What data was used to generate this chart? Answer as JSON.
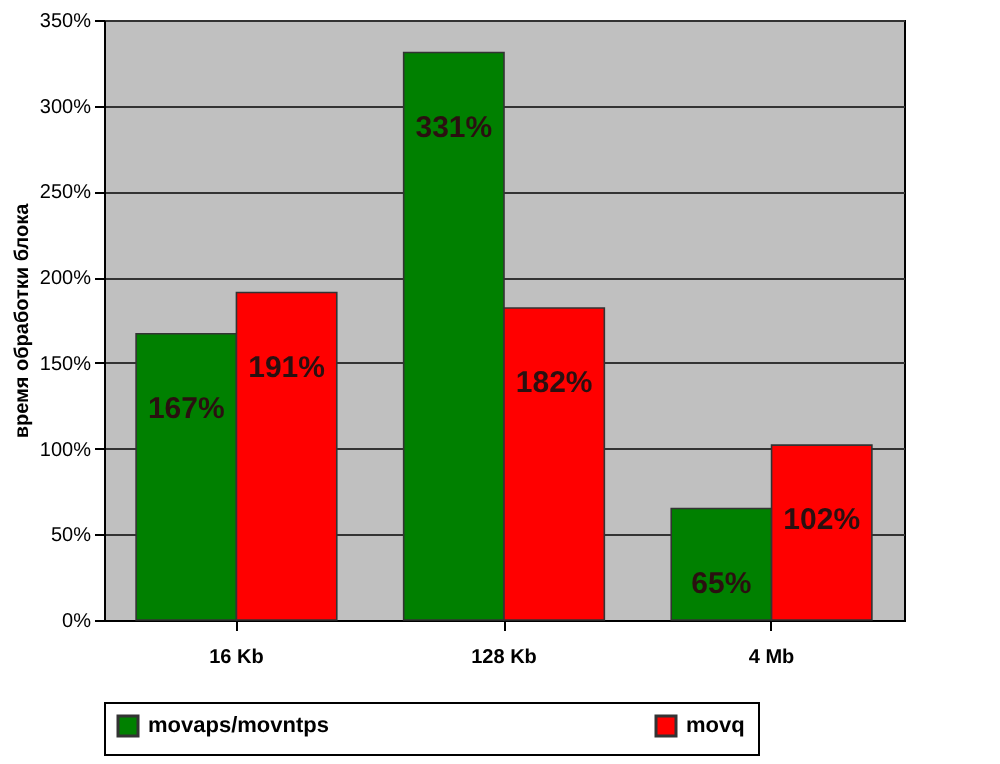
{
  "chart_data": {
    "type": "bar",
    "ylabel": "время обработки блока",
    "categories": [
      "16 Kb",
      "128 Kb",
      "4 Mb"
    ],
    "series": [
      {
        "name": "movaps/movntps",
        "color": "#008000",
        "values": [
          167,
          331,
          65
        ],
        "value_labels": [
          "167%",
          "331%",
          "65%"
        ]
      },
      {
        "name": "movq",
        "color": "#ff0000",
        "values": [
          191,
          182,
          102
        ],
        "value_labels": [
          "191%",
          "182%",
          "102%"
        ]
      }
    ],
    "ylim": [
      0,
      350
    ],
    "yticks": [
      {
        "value": 0,
        "label": "0%"
      },
      {
        "value": 50,
        "label": "50%"
      },
      {
        "value": 100,
        "label": "100%"
      },
      {
        "value": 150,
        "label": "150%"
      },
      {
        "value": 200,
        "label": "200%"
      },
      {
        "value": 250,
        "label": "250%"
      },
      {
        "value": 300,
        "label": "300%"
      },
      {
        "value": 350,
        "label": "350%"
      }
    ],
    "grid": "y",
    "legend": "bottom"
  }
}
